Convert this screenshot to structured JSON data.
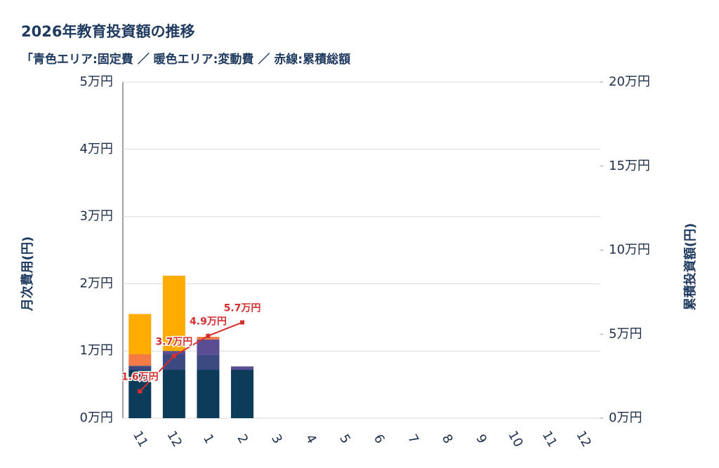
{
  "chart_data": {
    "type": "bar",
    "title": "2026年教育投資額の推移",
    "subtitle": "「青色エリア:固定費 ／ 暖色エリア:変動費 ／ 赤線:累積総額",
    "ylabel": "月次費用(円)",
    "y2label": "累積投資額(円)",
    "categories": [
      "11",
      "12",
      "1",
      "2",
      "3",
      "4",
      "5",
      "6",
      "7",
      "8",
      "9",
      "10",
      "11",
      "12"
    ],
    "series": [
      {
        "color": "#0d3b5a",
        "values": [
          7200,
          7200,
          7200,
          7200,
          null,
          null,
          null,
          null,
          null,
          null,
          null,
          null,
          null,
          null
        ]
      },
      {
        "color": "#3b4a80",
        "values": [
          600,
          2300,
          2200,
          0,
          null,
          null,
          null,
          null,
          null,
          null,
          null,
          null,
          null,
          null
        ]
      },
      {
        "color": "#5b4d94",
        "values": [
          0,
          500,
          2300,
          500,
          null,
          null,
          null,
          null,
          null,
          null,
          null,
          null,
          null,
          null
        ]
      },
      {
        "color": "#f47a46",
        "values": [
          1700,
          0,
          400,
          0,
          null,
          null,
          null,
          null,
          null,
          null,
          null,
          null,
          null,
          null
        ]
      },
      {
        "color": "#ffab00",
        "values": [
          6000,
          11200,
          0,
          0,
          null,
          null,
          null,
          null,
          null,
          null,
          null,
          null,
          null,
          null
        ]
      },
      {
        "type": "line",
        "axis": "y2",
        "color": "#d32f2f",
        "values": [
          16000,
          37000,
          49000,
          57000,
          null,
          null,
          null,
          null,
          null,
          null,
          null,
          null,
          null,
          null
        ],
        "value_labels": [
          "1.6万円",
          "3.7万円",
          "4.9万円",
          "5.7万円",
          null,
          null,
          null,
          null,
          null,
          null,
          null,
          null,
          null,
          null
        ]
      }
    ],
    "ylim": [
      0,
      50000
    ],
    "yticks": [
      {
        "value": 0,
        "label": "0万円"
      },
      {
        "value": 10000,
        "label": "1万円"
      },
      {
        "value": 20000,
        "label": "2万円"
      },
      {
        "value": 30000,
        "label": "3万円"
      },
      {
        "value": 40000,
        "label": "4万円"
      },
      {
        "value": 50000,
        "label": "5万円"
      }
    ],
    "y2lim": [
      0,
      200000
    ],
    "y2ticks": [
      {
        "value": 0,
        "label": "0万円"
      },
      {
        "value": 50000,
        "label": "5万円"
      },
      {
        "value": 100000,
        "label": "10万円"
      },
      {
        "value": 150000,
        "label": "15万円"
      },
      {
        "value": 200000,
        "label": "20万円"
      }
    ],
    "grid": true
  }
}
